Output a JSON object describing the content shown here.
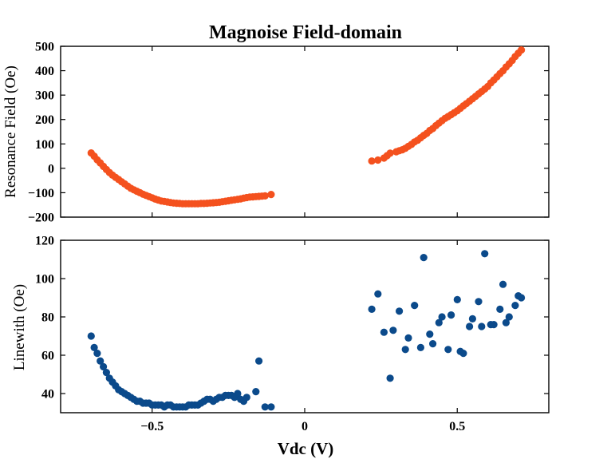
{
  "chart_data": [
    {
      "type": "scatter",
      "title": "Magnoise Field-domain",
      "xlabel": "",
      "ylabel": "Resonance Field (Oe)",
      "xlim": [
        -0.8,
        0.8
      ],
      "ylim": [
        -200,
        500
      ],
      "xticks": [
        -0.5,
        0,
        0.5
      ],
      "xtick_labels": [
        "",
        "",
        ""
      ],
      "yticks": [
        -200,
        -100,
        0,
        100,
        200,
        300,
        400,
        500
      ],
      "ytick_labels": [
        "−200",
        "−100",
        "0",
        "100",
        "200",
        "300",
        "400",
        "500"
      ],
      "grid": false,
      "color": "#f4511e",
      "series": [
        {
          "x": [
            -0.7,
            -0.69,
            -0.68,
            -0.67,
            -0.66,
            -0.65,
            -0.64,
            -0.63,
            -0.62,
            -0.61,
            -0.6,
            -0.59,
            -0.58,
            -0.57,
            -0.56,
            -0.55,
            -0.54,
            -0.53,
            -0.52,
            -0.51,
            -0.5,
            -0.49,
            -0.48,
            -0.47,
            -0.46,
            -0.45,
            -0.44,
            -0.43,
            -0.42,
            -0.41,
            -0.4,
            -0.39,
            -0.38,
            -0.37,
            -0.36,
            -0.35,
            -0.34,
            -0.33,
            -0.32,
            -0.31,
            -0.3,
            -0.29,
            -0.28,
            -0.27,
            -0.26,
            -0.25,
            -0.24,
            -0.23,
            -0.22,
            -0.21,
            -0.2,
            -0.19,
            -0.18,
            -0.17,
            -0.16,
            -0.15,
            -0.14,
            -0.13,
            -0.11,
            0.22,
            0.24,
            0.26,
            0.27,
            0.28,
            0.3,
            0.31,
            0.32,
            0.33,
            0.34,
            0.35,
            0.36,
            0.37,
            0.38,
            0.39,
            0.4,
            0.41,
            0.42,
            0.43,
            0.44,
            0.45,
            0.46,
            0.47,
            0.48,
            0.49,
            0.5,
            0.51,
            0.52,
            0.53,
            0.54,
            0.55,
            0.56,
            0.57,
            0.58,
            0.59,
            0.6,
            0.61,
            0.62,
            0.63,
            0.64,
            0.65,
            0.66,
            0.67,
            0.68,
            0.69,
            0.7,
            0.71
          ],
          "y": [
            63,
            50,
            35,
            22,
            8,
            -5,
            -17,
            -28,
            -37,
            -46,
            -55,
            -64,
            -73,
            -82,
            -88,
            -94,
            -100,
            -106,
            -111,
            -116,
            -121,
            -126,
            -130,
            -134,
            -136,
            -138,
            -140,
            -142,
            -143,
            -144,
            -145,
            -145,
            -145,
            -145,
            -145,
            -145,
            -144,
            -144,
            -143,
            -142,
            -141,
            -140,
            -139,
            -137,
            -135,
            -133,
            -131,
            -129,
            -127,
            -125,
            -122,
            -120,
            -118,
            -117,
            -116,
            -115,
            -114,
            -113,
            -107,
            30,
            34,
            42,
            52,
            62,
            68,
            72,
            76,
            82,
            90,
            98,
            108,
            115,
            125,
            135,
            143,
            155,
            163,
            175,
            185,
            195,
            205,
            212,
            220,
            228,
            236,
            246,
            256,
            265,
            275,
            285,
            295,
            305,
            315,
            325,
            335,
            350,
            362,
            375,
            388,
            400,
            415,
            428,
            442,
            458,
            472,
            485
          ]
        }
      ]
    },
    {
      "type": "scatter",
      "title": "",
      "xlabel": "Vdc (V)",
      "ylabel": "Linewith (Oe)",
      "xlim": [
        -0.8,
        0.8
      ],
      "ylim": [
        30,
        120
      ],
      "xticks": [
        -0.5,
        0,
        0.5
      ],
      "xtick_labels": [
        "−0.5",
        "0",
        "0.5"
      ],
      "yticks": [
        40,
        60,
        80,
        100,
        120
      ],
      "ytick_labels": [
        "40",
        "60",
        "80",
        "100",
        "120"
      ],
      "grid": false,
      "color": "#0b4a8b",
      "series": [
        {
          "x": [
            -0.7,
            -0.69,
            -0.68,
            -0.67,
            -0.66,
            -0.65,
            -0.64,
            -0.63,
            -0.62,
            -0.61,
            -0.6,
            -0.59,
            -0.58,
            -0.57,
            -0.56,
            -0.55,
            -0.54,
            -0.53,
            -0.52,
            -0.51,
            -0.5,
            -0.49,
            -0.48,
            -0.47,
            -0.46,
            -0.45,
            -0.44,
            -0.43,
            -0.42,
            -0.41,
            -0.4,
            -0.39,
            -0.38,
            -0.37,
            -0.36,
            -0.35,
            -0.34,
            -0.33,
            -0.32,
            -0.31,
            -0.3,
            -0.29,
            -0.28,
            -0.27,
            -0.26,
            -0.25,
            -0.24,
            -0.23,
            -0.22,
            -0.21,
            -0.2,
            -0.19,
            -0.16,
            -0.15,
            -0.13,
            -0.11,
            0.22,
            0.24,
            0.26,
            0.28,
            0.29,
            0.31,
            0.33,
            0.34,
            0.36,
            0.38,
            0.39,
            0.41,
            0.42,
            0.44,
            0.45,
            0.47,
            0.48,
            0.5,
            0.51,
            0.52,
            0.54,
            0.55,
            0.57,
            0.58,
            0.59,
            0.61,
            0.62,
            0.64,
            0.65,
            0.66,
            0.67,
            0.69,
            0.7,
            0.71
          ],
          "y": [
            70,
            64,
            61,
            57,
            54,
            51,
            48,
            46,
            44,
            42,
            41,
            40,
            39,
            38,
            37,
            36,
            36,
            35,
            35,
            35,
            34,
            34,
            34,
            34,
            33,
            34,
            34,
            33,
            33,
            33,
            33,
            33,
            34,
            34,
            34,
            34,
            35,
            36,
            37,
            37,
            36,
            37,
            38,
            38,
            39,
            39,
            39,
            38,
            40,
            37,
            36,
            38,
            41,
            57,
            33,
            33,
            84,
            92,
            72,
            48,
            73,
            83,
            63,
            69,
            86,
            64,
            111,
            71,
            66,
            77,
            80,
            63,
            81,
            89,
            62,
            61,
            75,
            79,
            88,
            75,
            113,
            76,
            76,
            84,
            97,
            77,
            80,
            86,
            91,
            90
          ]
        }
      ]
    }
  ]
}
